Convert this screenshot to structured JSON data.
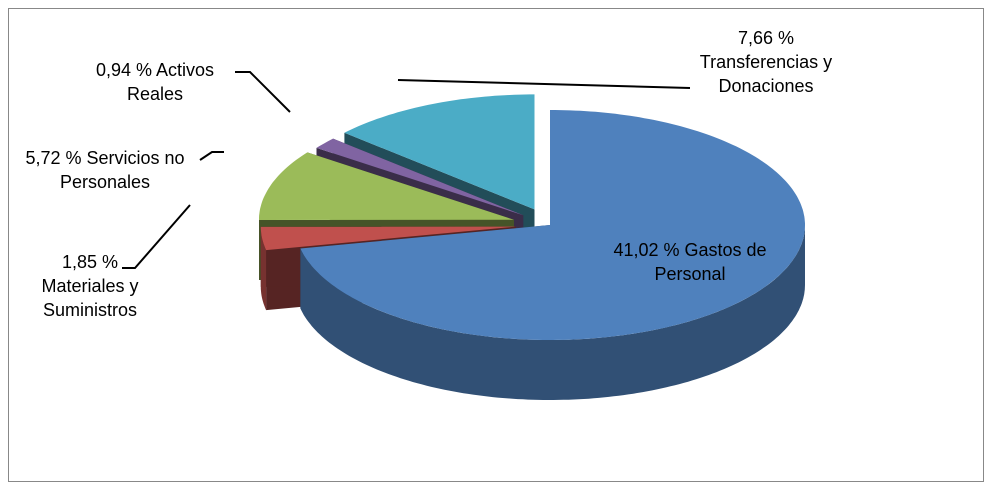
{
  "chart_data": {
    "type": "pie3d",
    "categories": [
      "Gastos de Personal",
      "Materiales y Suministros",
      "Servicios no Personales",
      "Activos Reales",
      "Transferencias y Donaciones"
    ],
    "values": [
      41.02,
      1.85,
      5.72,
      0.94,
      7.66
    ],
    "value_labels": [
      "41,02 % ",
      "1,85 %",
      "5,72 %",
      "0,94 %",
      "7,66 %"
    ],
    "colors": [
      "#4f81bd",
      "#c0504d",
      "#9bbb59",
      "#8064a2",
      "#4bacc6"
    ]
  }
}
